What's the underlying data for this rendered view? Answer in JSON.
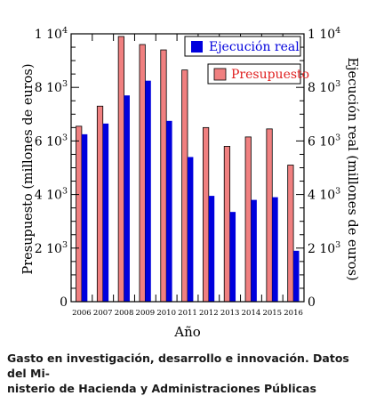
{
  "chart_data": {
    "type": "bar",
    "categories": [
      "2006",
      "2007",
      "2008",
      "2009",
      "2010",
      "2011",
      "2012",
      "2013",
      "2014",
      "2015",
      "2016"
    ],
    "series": [
      {
        "name": "Presupuesto",
        "color": "#f08080",
        "axis": "left",
        "values": [
          6550,
          7300,
          9900,
          9600,
          9400,
          8650,
          6500,
          5800,
          6150,
          6450,
          5100
        ]
      },
      {
        "name": "Ejecución real",
        "color": "#0000dd",
        "axis": "right",
        "values": [
          6250,
          6650,
          7700,
          8250,
          6750,
          5400,
          3950,
          3350,
          3800,
          3900,
          1900
        ]
      }
    ],
    "ylim": [
      0,
      10000
    ],
    "yticks_left": [
      {
        "value": 0,
        "mantissa": "0",
        "exp": ""
      },
      {
        "value": 2000,
        "mantissa": "2 10",
        "exp": "3"
      },
      {
        "value": 4000,
        "mantissa": "4 10",
        "exp": "3"
      },
      {
        "value": 6000,
        "mantissa": "6 10",
        "exp": "3"
      },
      {
        "value": 8000,
        "mantissa": "8 10",
        "exp": "3"
      },
      {
        "value": 10000,
        "mantissa": "1 10",
        "exp": "4"
      }
    ],
    "yticks_right": [
      {
        "value": 0,
        "mantissa": "0",
        "exp": ""
      },
      {
        "value": 2000,
        "mantissa": "2 10",
        "exp": "3"
      },
      {
        "value": 4000,
        "mantissa": "4 10",
        "exp": "3"
      },
      {
        "value": 6000,
        "mantissa": "6 10",
        "exp": "3"
      },
      {
        "value": 8000,
        "mantissa": "8 10",
        "exp": "3"
      },
      {
        "value": 10000,
        "mantissa": "1 10",
        "exp": "4"
      }
    ],
    "xlabel": "Año",
    "ylabel_left": "Presupuesto (millones de euros)",
    "ylabel_right": "Ejecución real (millones de euros)",
    "legend_placement": "top-right",
    "grid": false
  },
  "caption": {
    "line1": "Gasto en investigación, desarrollo e innovación. Datos del Mi-",
    "line2": "nisterio de Hacienda y Administraciones Públicas"
  }
}
